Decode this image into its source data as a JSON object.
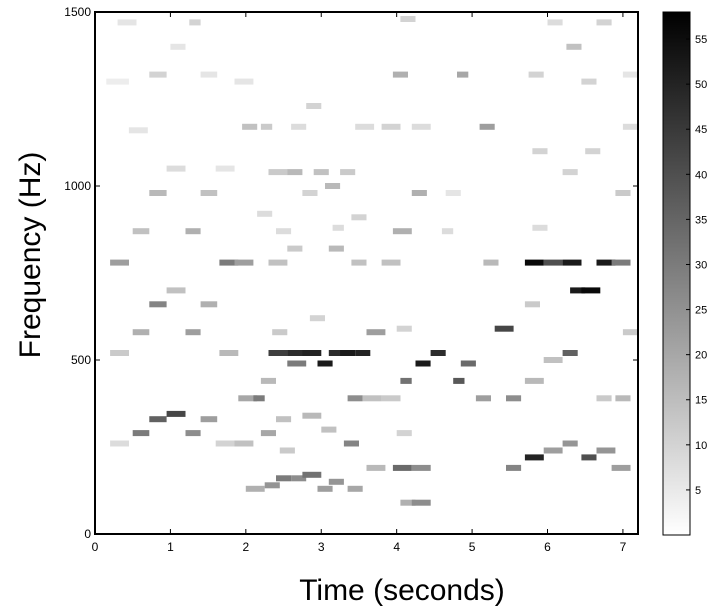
{
  "chart_data": {
    "type": "heatmap",
    "title": "",
    "xlabel": "Time (seconds)",
    "ylabel": "Frequency (Hz)",
    "xlim": [
      0,
      7.2
    ],
    "ylim": [
      0,
      1500
    ],
    "x_ticks": [
      0,
      1,
      2,
      3,
      4,
      5,
      6,
      7
    ],
    "y_ticks": [
      0,
      500,
      1000,
      1500
    ],
    "colorbar": {
      "min": 0,
      "max": 58,
      "ticks": [
        5,
        10,
        15,
        20,
        25,
        30,
        35,
        40,
        45,
        50,
        55
      ],
      "colormap": "white-to-black",
      "low_color": "#ffffff",
      "high_color": "#000000"
    },
    "segments_format": [
      "t_start_s",
      "t_end_s",
      "frequency_hz",
      "intensity"
    ],
    "segments": [
      [
        0.2,
        0.45,
        780,
        22
      ],
      [
        0.2,
        0.45,
        520,
        12
      ],
      [
        0.2,
        0.45,
        260,
        8
      ],
      [
        0.15,
        0.45,
        1300,
        4
      ],
      [
        0.3,
        0.55,
        1470,
        6
      ],
      [
        0.5,
        0.72,
        290,
        30
      ],
      [
        0.5,
        0.72,
        580,
        18
      ],
      [
        0.5,
        0.72,
        870,
        14
      ],
      [
        0.45,
        0.7,
        1160,
        6
      ],
      [
        0.72,
        0.95,
        330,
        36
      ],
      [
        0.72,
        0.95,
        660,
        28
      ],
      [
        0.72,
        0.95,
        980,
        16
      ],
      [
        0.72,
        0.95,
        1320,
        10
      ],
      [
        0.95,
        1.2,
        345,
        42
      ],
      [
        0.95,
        1.2,
        700,
        14
      ],
      [
        0.95,
        1.2,
        1050,
        8
      ],
      [
        1.0,
        1.2,
        1400,
        6
      ],
      [
        1.2,
        1.4,
        290,
        26
      ],
      [
        1.2,
        1.4,
        580,
        22
      ],
      [
        1.2,
        1.4,
        870,
        18
      ],
      [
        1.25,
        1.4,
        1470,
        10
      ],
      [
        1.4,
        1.62,
        330,
        22
      ],
      [
        1.4,
        1.62,
        660,
        18
      ],
      [
        1.4,
        1.62,
        980,
        14
      ],
      [
        1.4,
        1.62,
        1320,
        6
      ],
      [
        1.6,
        1.85,
        1050,
        6
      ],
      [
        1.6,
        1.85,
        260,
        10
      ],
      [
        1.65,
        1.9,
        520,
        16
      ],
      [
        1.65,
        1.9,
        780,
        30
      ],
      [
        1.85,
        2.1,
        780,
        22
      ],
      [
        1.85,
        2.1,
        1300,
        6
      ],
      [
        1.85,
        2.1,
        260,
        14
      ],
      [
        1.9,
        2.15,
        390,
        20
      ],
      [
        1.95,
        2.15,
        1170,
        14
      ],
      [
        2.1,
        2.25,
        390,
        30
      ],
      [
        2.0,
        2.25,
        130,
        18
      ],
      [
        2.15,
        2.35,
        920,
        8
      ],
      [
        2.2,
        2.35,
        1170,
        12
      ],
      [
        2.2,
        2.4,
        290,
        20
      ],
      [
        2.2,
        2.4,
        440,
        16
      ],
      [
        2.25,
        2.45,
        140,
        24
      ],
      [
        2.3,
        2.55,
        520,
        44
      ],
      [
        2.3,
        2.55,
        1040,
        12
      ],
      [
        2.3,
        2.55,
        780,
        14
      ],
      [
        2.35,
        2.55,
        580,
        12
      ],
      [
        2.4,
        2.6,
        160,
        30
      ],
      [
        2.4,
        2.6,
        330,
        14
      ],
      [
        2.4,
        2.6,
        870,
        8
      ],
      [
        2.45,
        2.65,
        240,
        12
      ],
      [
        2.55,
        2.8,
        520,
        48
      ],
      [
        2.55,
        2.8,
        490,
        30
      ],
      [
        2.55,
        2.75,
        1040,
        16
      ],
      [
        2.55,
        2.75,
        820,
        12
      ],
      [
        2.6,
        2.8,
        1170,
        8
      ],
      [
        2.6,
        2.8,
        160,
        26
      ],
      [
        2.75,
        3.0,
        170,
        32
      ],
      [
        2.75,
        3.0,
        520,
        50
      ],
      [
        2.75,
        3.0,
        340,
        16
      ],
      [
        2.75,
        2.95,
        980,
        10
      ],
      [
        2.8,
        3.0,
        1230,
        10
      ],
      [
        2.85,
        3.05,
        620,
        10
      ],
      [
        2.9,
        3.1,
        1040,
        14
      ],
      [
        2.95,
        3.15,
        490,
        52
      ],
      [
        2.95,
        3.15,
        130,
        22
      ],
      [
        3.0,
        3.2,
        300,
        14
      ],
      [
        3.05,
        3.25,
        1000,
        16
      ],
      [
        3.1,
        3.3,
        520,
        48
      ],
      [
        3.1,
        3.3,
        150,
        24
      ],
      [
        3.1,
        3.3,
        820,
        16
      ],
      [
        3.15,
        3.3,
        880,
        8
      ],
      [
        3.25,
        3.45,
        520,
        52
      ],
      [
        3.25,
        3.45,
        1040,
        12
      ],
      [
        3.3,
        3.5,
        260,
        28
      ],
      [
        3.35,
        3.55,
        390,
        26
      ],
      [
        3.35,
        3.55,
        130,
        20
      ],
      [
        3.4,
        3.6,
        910,
        10
      ],
      [
        3.4,
        3.6,
        780,
        14
      ],
      [
        3.45,
        3.65,
        520,
        50
      ],
      [
        3.45,
        3.7,
        1170,
        8
      ],
      [
        3.55,
        3.8,
        390,
        14
      ],
      [
        3.6,
        3.85,
        190,
        16
      ],
      [
        3.6,
        3.85,
        580,
        22
      ],
      [
        3.8,
        4.05,
        390,
        12
      ],
      [
        3.8,
        4.05,
        1170,
        10
      ],
      [
        3.8,
        4.05,
        780,
        14
      ],
      [
        3.95,
        4.2,
        190,
        34
      ],
      [
        3.95,
        4.2,
        870,
        18
      ],
      [
        3.95,
        4.15,
        1320,
        18
      ],
      [
        4.0,
        4.2,
        290,
        10
      ],
      [
        4.0,
        4.2,
        590,
        10
      ],
      [
        4.05,
        4.25,
        1480,
        10
      ],
      [
        4.05,
        4.25,
        90,
        18
      ],
      [
        4.05,
        4.2,
        440,
        32
      ],
      [
        4.2,
        4.45,
        1170,
        8
      ],
      [
        4.2,
        4.4,
        980,
        18
      ],
      [
        4.2,
        4.45,
        190,
        26
      ],
      [
        4.2,
        4.45,
        90,
        26
      ],
      [
        4.25,
        4.45,
        490,
        52
      ],
      [
        4.45,
        4.65,
        520,
        48
      ],
      [
        4.6,
        4.75,
        870,
        8
      ],
      [
        4.65,
        4.85,
        980,
        6
      ],
      [
        4.75,
        4.9,
        440,
        38
      ],
      [
        4.8,
        4.95,
        1320,
        20
      ],
      [
        4.85,
        5.05,
        490,
        34
      ],
      [
        5.05,
        5.25,
        390,
        22
      ],
      [
        5.1,
        5.3,
        1170,
        22
      ],
      [
        5.15,
        5.35,
        780,
        16
      ],
      [
        5.3,
        5.55,
        590,
        42
      ],
      [
        5.45,
        5.65,
        190,
        28
      ],
      [
        5.45,
        5.65,
        390,
        26
      ],
      [
        5.7,
        5.95,
        780,
        56
      ],
      [
        5.7,
        5.95,
        220,
        50
      ],
      [
        5.7,
        5.95,
        440,
        16
      ],
      [
        5.7,
        5.9,
        660,
        12
      ],
      [
        5.75,
        5.95,
        1320,
        10
      ],
      [
        5.8,
        6.0,
        1100,
        10
      ],
      [
        5.8,
        6.0,
        880,
        8
      ],
      [
        5.95,
        6.2,
        780,
        40
      ],
      [
        5.95,
        6.2,
        240,
        22
      ],
      [
        5.95,
        6.2,
        500,
        14
      ],
      [
        6.0,
        6.2,
        1470,
        8
      ],
      [
        6.2,
        6.45,
        780,
        52
      ],
      [
        6.2,
        6.4,
        520,
        36
      ],
      [
        6.2,
        6.4,
        260,
        24
      ],
      [
        6.2,
        6.4,
        1040,
        10
      ],
      [
        6.25,
        6.45,
        1400,
        14
      ],
      [
        6.3,
        6.5,
        700,
        52
      ],
      [
        6.45,
        6.7,
        700,
        56
      ],
      [
        6.45,
        6.65,
        220,
        40
      ],
      [
        6.45,
        6.65,
        1300,
        10
      ],
      [
        6.5,
        6.7,
        1100,
        10
      ],
      [
        6.65,
        6.9,
        780,
        52
      ],
      [
        6.65,
        6.9,
        240,
        24
      ],
      [
        6.65,
        6.85,
        390,
        12
      ],
      [
        6.65,
        6.85,
        1470,
        10
      ],
      [
        6.85,
        7.1,
        780,
        30
      ],
      [
        6.85,
        7.1,
        190,
        22
      ],
      [
        6.9,
        7.1,
        980,
        12
      ],
      [
        6.9,
        7.1,
        390,
        16
      ],
      [
        7.0,
        7.2,
        580,
        12
      ],
      [
        7.0,
        7.2,
        1170,
        8
      ],
      [
        7.0,
        7.2,
        1320,
        6
      ]
    ]
  }
}
